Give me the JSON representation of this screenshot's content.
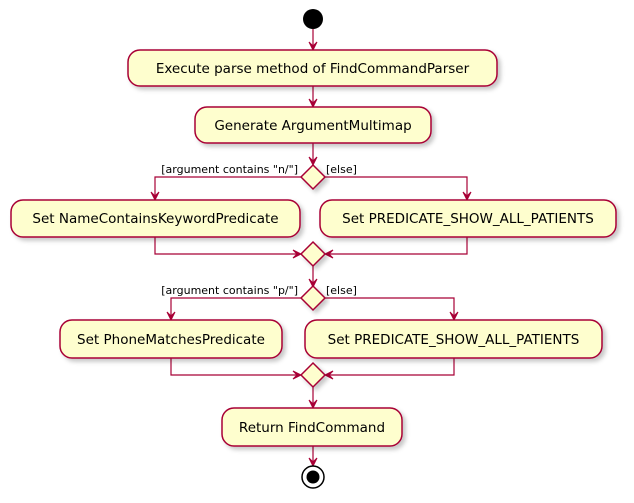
{
  "colors": {
    "activity_fill": "#FEFECE",
    "border": "#A80036",
    "start_node": "#000000",
    "background": "#FFFFFF"
  },
  "diagram": {
    "activities": {
      "execute_parse": "Execute parse method of FindCommandParser",
      "generate_multimap": "Generate ArgumentMultimap",
      "set_name_predicate": "Set NameContainsKeywordPredicate",
      "set_show_all_1": "Set PREDICATE_SHOW_ALL_PATIENTS",
      "set_phone_predicate": "Set PhoneMatchesPredicate",
      "set_show_all_2": "Set PREDICATE_SHOW_ALL_PATIENTS",
      "return_command": "Return FindCommand"
    },
    "guards": {
      "name_branch": "[argument contains \"n/\"]",
      "name_else": "[else]",
      "phone_branch": "[argument contains \"p/\"]",
      "phone_else": "[else]"
    }
  }
}
